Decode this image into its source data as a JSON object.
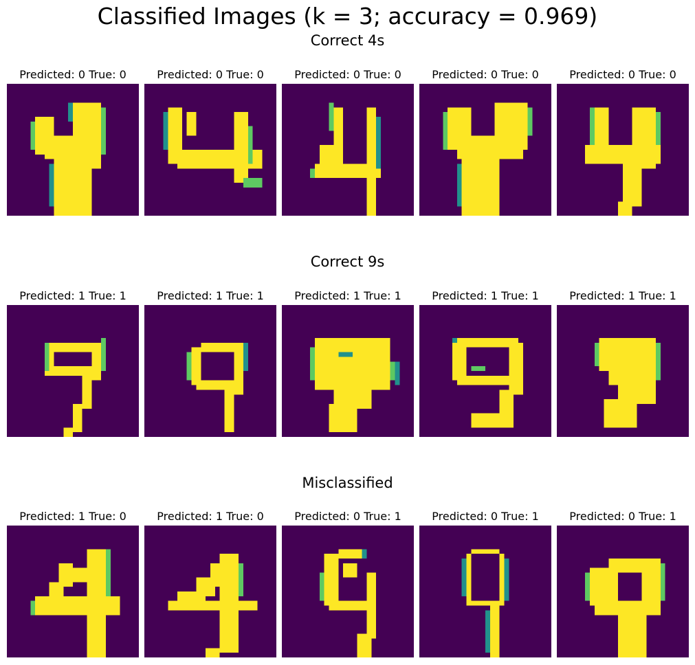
{
  "title": "Classified Images (k = 3; accuracy = 0.969)",
  "colors": {
    "background": "#440154",
    "colormap": [
      "#440154",
      "#3b528b",
      "#21918c",
      "#5ec962",
      "#fde725"
    ]
  },
  "sections": [
    {
      "title": "Correct 4s",
      "panels": [
        {
          "label": "Predicted: 0 True: 0",
          "digit": "4",
          "style": "fat-4"
        },
        {
          "label": "Predicted: 0 True: 0",
          "digit": "4",
          "style": "wide-4"
        },
        {
          "label": "Predicted: 0 True: 0",
          "digit": "4",
          "style": "thin-4"
        },
        {
          "label": "Predicted: 0 True: 0",
          "digit": "4",
          "style": "fat-4"
        },
        {
          "label": "Predicted: 0 True: 0",
          "digit": "4",
          "style": "bold-4"
        }
      ]
    },
    {
      "title": "Correct 9s",
      "panels": [
        {
          "label": "Predicted: 1 True: 1",
          "digit": "9",
          "style": "slanted-9"
        },
        {
          "label": "Predicted: 1 True: 1",
          "digit": "9",
          "style": "slanted-9"
        },
        {
          "label": "Predicted: 1 True: 1",
          "digit": "9",
          "style": "fat-9"
        },
        {
          "label": "Predicted: 1 True: 1",
          "digit": "9",
          "style": "loop-9"
        },
        {
          "label": "Predicted: 1 True: 1",
          "digit": "9",
          "style": "comma-9"
        }
      ]
    },
    {
      "title": "Misclassified",
      "panels": [
        {
          "label": "Predicted: 1 True: 0",
          "digit": "4",
          "style": "bold-4"
        },
        {
          "label": "Predicted: 1 True: 0",
          "digit": "4",
          "style": "bold-4"
        },
        {
          "label": "Predicted: 0 True: 1",
          "digit": "9",
          "style": "slanted-9"
        },
        {
          "label": "Predicted: 0 True: 1",
          "digit": "9",
          "style": "narrow-9"
        },
        {
          "label": "Predicted: 0 True: 1",
          "digit": "9",
          "style": "fat-9"
        }
      ]
    }
  ]
}
